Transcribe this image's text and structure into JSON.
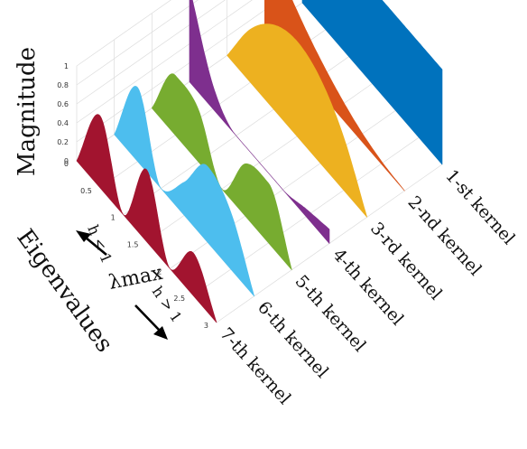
{
  "chart_data": {
    "type": "area",
    "zlabel": "Magnitude",
    "ylabel": "Eigenvalues",
    "annotation_center": "λmax",
    "annotation_up": "h < 1",
    "annotation_down": "h > 1",
    "zlim": [
      0,
      1
    ],
    "ylim": [
      0,
      3
    ],
    "z_ticks": [
      "0",
      "0.2",
      "0.4",
      "0.6",
      "0.8",
      "1"
    ],
    "y_ticks": [
      "0",
      "0.5",
      "1",
      "1.5",
      "2",
      "2.5",
      "3"
    ],
    "grid": true,
    "series": [
      {
        "name": "1-st kernel",
        "color": "#0072BD",
        "lambda": [
          0,
          0.5,
          1,
          1.5,
          2,
          2.5,
          3
        ],
        "magnitude": [
          1.0,
          1.0,
          1.0,
          1.0,
          1.0,
          1.0,
          1.0
        ]
      },
      {
        "name": "2-nd kernel",
        "color": "#D95319",
        "lambda": [
          0,
          0.5,
          1,
          1.5,
          2,
          2.5,
          3
        ],
        "magnitude": [
          1.0,
          0.69,
          0.44,
          0.25,
          0.11,
          0.03,
          0.0
        ]
      },
      {
        "name": "3-rd kernel",
        "color": "#EDB120",
        "lambda": [
          0,
          0.5,
          1,
          1.5,
          2,
          2.5,
          3
        ],
        "magnitude": [
          0.0,
          0.56,
          0.89,
          1.0,
          0.89,
          0.56,
          0.0
        ]
      },
      {
        "name": "4-th kernel",
        "color": "#7E2F8E",
        "lambda": [
          0,
          0.5,
          1,
          1.5,
          2,
          2.5,
          3
        ],
        "magnitude": [
          1.0,
          0.25,
          0.0,
          0.0,
          0.0,
          0.08,
          0.15
        ]
      },
      {
        "name": "5-th kernel",
        "color": "#77AC30",
        "lambda": [
          0,
          0.5,
          1,
          1.5,
          2,
          2.5,
          3
        ],
        "magnitude": [
          0.0,
          0.63,
          0.55,
          0.0,
          0.55,
          0.63,
          0.0
        ]
      },
      {
        "name": "6-th kernel",
        "color": "#4DBEEE",
        "lambda": [
          0,
          0.5,
          1,
          1.5,
          2,
          2.5,
          3
        ],
        "magnitude": [
          0.0,
          0.78,
          0.0,
          0.35,
          0.8,
          0.6,
          0.0
        ]
      },
      {
        "name": "7-th kernel",
        "color": "#A2142F",
        "lambda": [
          0,
          0.5,
          1,
          1.5,
          2,
          2.5,
          3
        ],
        "magnitude": [
          0.0,
          0.76,
          0.0,
          0.76,
          0.0,
          0.45,
          0.0
        ]
      }
    ]
  }
}
